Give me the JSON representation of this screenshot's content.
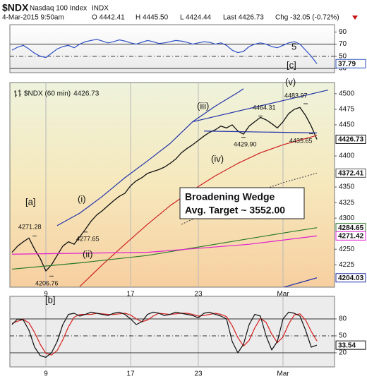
{
  "header": {
    "symbol": "$NDX",
    "name": "Nasdaq 100 Index",
    "exchange": "INDX",
    "date": "4-Mar-2015 9:50am",
    "open": "O 4442.41",
    "high": "H 4445.50",
    "low": "L 4424.44",
    "last": "Last 4426.73",
    "change": "Chg -32.05 (-0.72%)"
  },
  "chart_data": [
    {
      "type": "line",
      "x": [
        0,
        1,
        2,
        3,
        4,
        5,
        6,
        7,
        8,
        9,
        10,
        11,
        12,
        13,
        14,
        15,
        16,
        17,
        18,
        19,
        20,
        21,
        22,
        23,
        24,
        25,
        26,
        27,
        28,
        29,
        30,
        31,
        32,
        33,
        34,
        35,
        36,
        37,
        38,
        39,
        40,
        41,
        42,
        43,
        44,
        45,
        46,
        47,
        48,
        49,
        50,
        51,
        52,
        53,
        54
      ],
      "xlim": [
        -0.375,
        57.125
      ],
      "ylim": [
        23,
        102
      ],
      "yticks": [
        90,
        70,
        50,
        30
      ],
      "hlines": [
        70,
        50,
        30
      ],
      "hline_dashed": [
        false,
        true,
        false
      ],
      "series": [
        {
          "color": "#2d4fc4",
          "end_box": true,
          "values": [
            60,
            65,
            68,
            62,
            55,
            50,
            48,
            55,
            62,
            66,
            68,
            64,
            70,
            74,
            76,
            78,
            75,
            72,
            74,
            77,
            75,
            72,
            70,
            73,
            76,
            74,
            71,
            72,
            74,
            76,
            75,
            73,
            70,
            72,
            74,
            73,
            70,
            72,
            68,
            60,
            56,
            58,
            66,
            70,
            72,
            70,
            66,
            64,
            68,
            72,
            74,
            70,
            60,
            50,
            37.79
          ]
        }
      ],
      "annotations": [
        {
          "text": "5",
          "color": "#8a3fd0"
        },
        {
          "text": "[c]",
          "color": "#c81414"
        }
      ]
    },
    {
      "type": "line",
      "x": [
        0,
        1,
        2,
        3,
        4,
        5,
        6,
        7,
        8,
        9,
        10,
        11,
        12,
        13,
        14,
        15,
        16,
        17,
        18,
        19,
        20,
        21,
        22,
        23,
        24,
        25,
        26,
        27,
        28,
        29,
        30,
        31,
        32,
        33,
        34,
        35,
        36,
        37,
        38,
        39,
        40,
        41,
        42,
        43,
        44,
        45,
        46,
        47,
        48,
        49,
        50,
        51,
        52,
        53,
        54
      ],
      "xlim": [
        -0.375,
        57.125
      ],
      "ylim": [
        4189,
        4518
      ],
      "yticks": [
        4500,
        4475,
        4450,
        4400,
        4350,
        4325,
        4300,
        4250,
        4225
      ],
      "xticks": [
        {
          "value": 6,
          "label": "9"
        },
        {
          "value": 21,
          "label": "17"
        },
        {
          "value": 33,
          "label": "23"
        },
        {
          "value": 48,
          "label": "Mar"
        }
      ],
      "series": [
        {
          "name": "$NDX (60 min)",
          "color": "#111111",
          "end_box": true,
          "values": [
            4245,
            4255,
            4262,
            4268,
            4250,
            4235,
            4215,
            4225,
            4240,
            4255,
            4262,
            4258,
            4270,
            4282,
            4295,
            4305,
            4312,
            4320,
            4328,
            4335,
            4340,
            4352,
            4360,
            4365,
            4372,
            4375,
            4378,
            4382,
            4388,
            4395,
            4405,
            4412,
            4418,
            4425,
            4432,
            4438,
            4442,
            4448,
            4445,
            4450,
            4440,
            4435,
            4448,
            4455,
            4462,
            4458,
            4452,
            4445,
            4455,
            4468,
            4475,
            4478,
            4465,
            4448,
            4426.73
          ]
        },
        {
          "color": "#2233aa",
          "x": [
            8,
            12,
            16,
            20,
            24,
            28,
            32,
            36,
            40,
            41
          ],
          "values": [
            4288,
            4308,
            4335,
            4365,
            4392,
            4420,
            4455,
            4480,
            4502,
            4508
          ]
        },
        {
          "color": "#cc2222",
          "x": [
            12,
            16,
            20,
            24,
            28,
            32,
            36,
            40,
            44,
            48,
            52,
            54
          ],
          "values": [
            4190,
            4225,
            4258,
            4290,
            4320,
            4345,
            4368,
            4388,
            4405,
            4418,
            4428,
            4433
          ]
        },
        {
          "color": "#555555",
          "dashed": true,
          "end_box": true,
          "x": [
            30,
            36,
            42,
            48,
            54
          ],
          "values": [
            4290,
            4315,
            4338,
            4357,
            4372.41
          ]
        },
        {
          "color": "#2a7a2a",
          "end_box": true,
          "x": [
            0,
            12,
            24,
            36,
            48,
            54
          ],
          "values": [
            4218,
            4228,
            4240,
            4258,
            4276,
            4284.65
          ]
        },
        {
          "color": "#e020d0",
          "end_box": true,
          "x": [
            0,
            24,
            42,
            54
          ],
          "values": [
            4242,
            4245,
            4258,
            4271.42
          ]
        },
        {
          "color": "#2233aa",
          "end_box": true,
          "x": [
            47,
            54
          ],
          "values": [
            4186,
            4204.03
          ]
        },
        {
          "color": "#2233aa",
          "x": [
            32,
            56
          ],
          "values": [
            4455,
            4506
          ]
        },
        {
          "color": "#2233aa",
          "x": [
            34,
            54
          ],
          "values": [
            4440,
            4437
          ]
        }
      ],
      "price_labels": {
        "x": [
          4,
          7,
          13,
          41,
          44,
          52,
          53
        ],
        "values": [
          4271.28,
          4206.76,
          4277.65,
          4429.9,
          4464.31,
          4483.97,
          4435.65
        ],
        "value_labels": [
          "4271.28",
          "4206.76",
          "4277.65",
          "4429.90",
          "4464.31",
          "4483.97",
          "4435.65"
        ]
      },
      "annotations": [
        {
          "text": "[a]",
          "color": "#c81414"
        },
        {
          "text": "(i)",
          "color": "#2a8a2a"
        },
        {
          "text": "(ii)",
          "color": "#2a8a2a"
        },
        {
          "text": "(iii)",
          "color": "#2a8a2a"
        },
        {
          "text": "(iv)",
          "color": "#2a8a2a"
        },
        {
          "text": "(v)",
          "color": "#2a8a2a"
        }
      ],
      "box_text": [
        "Broadening Wedge",
        "Avg. Target ~ 3552.00"
      ]
    },
    {
      "type": "line",
      "x": [
        0,
        1,
        2,
        3,
        4,
        5,
        6,
        7,
        8,
        9,
        10,
        11,
        12,
        13,
        14,
        15,
        16,
        17,
        18,
        19,
        20,
        21,
        22,
        23,
        24,
        25,
        26,
        27,
        28,
        29,
        30,
        31,
        32,
        33,
        34,
        35,
        36,
        37,
        38,
        39,
        40,
        41,
        42,
        43,
        44,
        45,
        46,
        47,
        48,
        49,
        50,
        51,
        52,
        53,
        54
      ],
      "xlim": [
        -0.375,
        57.125
      ],
      "ylim": [
        -5,
        120
      ],
      "yticks": [
        80,
        50,
        20
      ],
      "xticks": [
        {
          "value": 6,
          "label": "9"
        },
        {
          "value": 21,
          "label": "17"
        },
        {
          "value": 33,
          "label": "23"
        },
        {
          "value": 48,
          "label": "Mar"
        }
      ],
      "hlines": [
        80,
        50,
        20
      ],
      "hline_dashed": [
        false,
        true,
        false
      ],
      "series": [
        {
          "color": "#d42020",
          "values": [
            72,
            76,
            79,
            73,
            56,
            35,
            19,
            16,
            24,
            43,
            66,
            83,
            88,
            88,
            88,
            90,
            89,
            88,
            88,
            89,
            90,
            87,
            80,
            75,
            78,
            85,
            90,
            89,
            88,
            89,
            90,
            90,
            88,
            85,
            86,
            88,
            90,
            88,
            84,
            68,
            47,
            32,
            42,
            64,
            81,
            74,
            53,
            38,
            48,
            71,
            87,
            89,
            78,
            58,
            41
          ]
        },
        {
          "color": "#111111",
          "end_box": true,
          "values": [
            70,
            80,
            78,
            60,
            30,
            15,
            12,
            20,
            40,
            70,
            88,
            90,
            85,
            88,
            92,
            90,
            88,
            86,
            90,
            92,
            88,
            80,
            70,
            75,
            88,
            92,
            90,
            86,
            88,
            92,
            90,
            88,
            86,
            82,
            90,
            92,
            88,
            85,
            80,
            40,
            20,
            35,
            70,
            88,
            85,
            50,
            25,
            40,
            80,
            92,
            90,
            85,
            60,
            30,
            33.54
          ]
        }
      ],
      "annotations": [
        {
          "text": "[b]",
          "color": "#c81414"
        }
      ]
    }
  ]
}
